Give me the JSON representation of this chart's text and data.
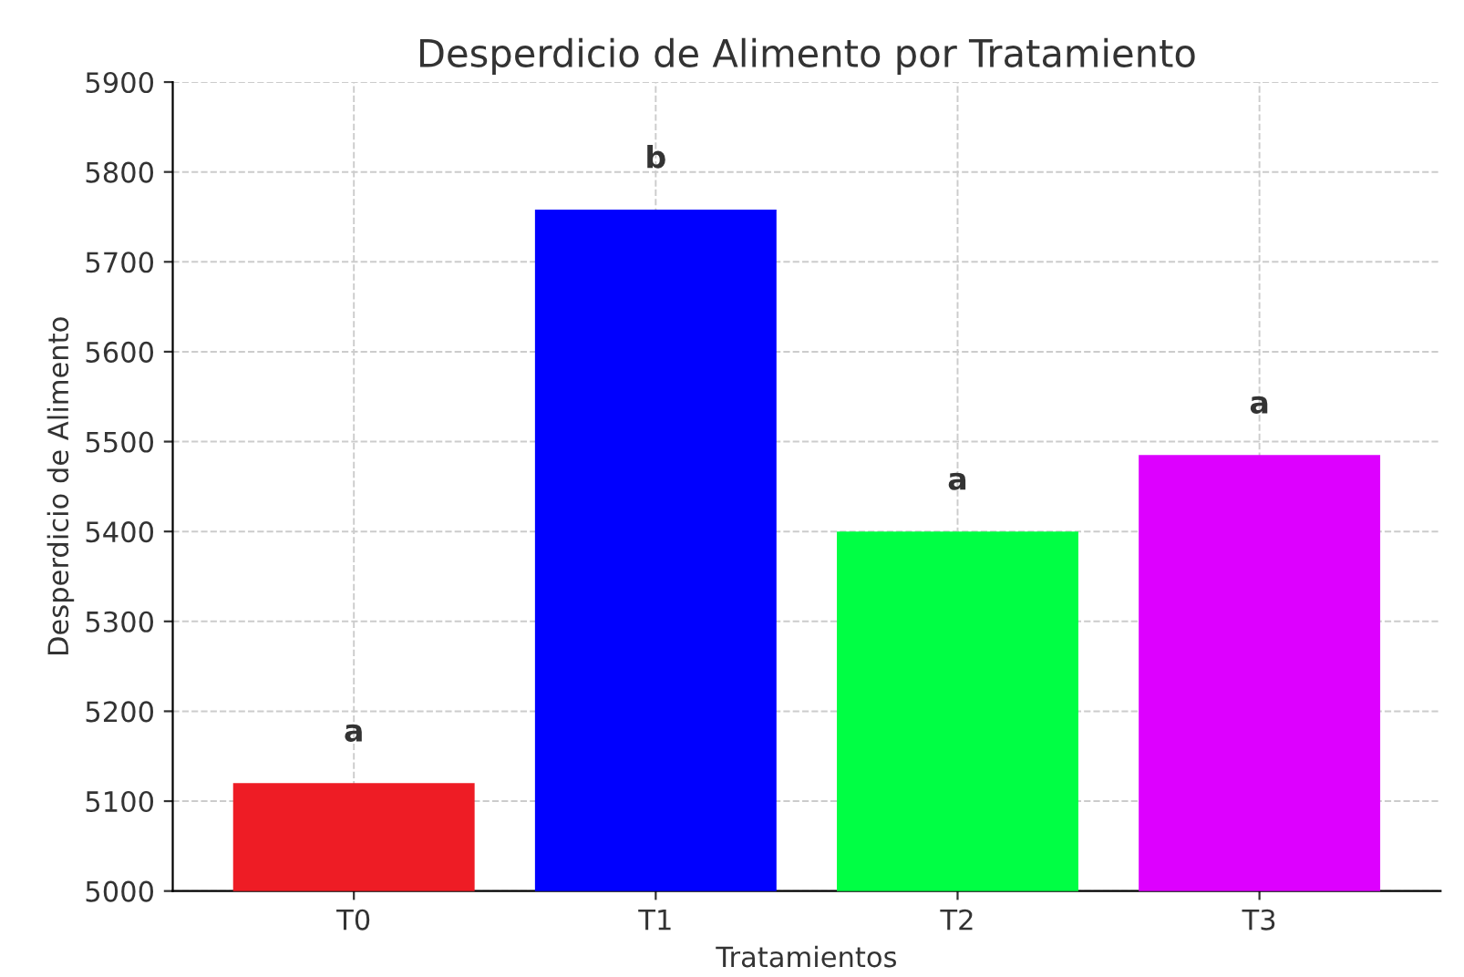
{
  "chart_data": {
    "type": "bar",
    "title": "Desperdicio de Alimento por Tratamiento",
    "xlabel": "Tratamientos",
    "ylabel": "Desperdicio de Alimento",
    "categories": [
      "T0",
      "T1",
      "T2",
      "T3"
    ],
    "values": [
      5120,
      5758,
      5400,
      5485
    ],
    "colors": [
      "#ee1c25",
      "#0000ff",
      "#00ff44",
      "#dd00ff"
    ],
    "ylim": [
      5000,
      5900
    ],
    "yticks": [
      5000,
      5100,
      5200,
      5300,
      5400,
      5500,
      5600,
      5700,
      5800,
      5900
    ],
    "grid": true,
    "annotations": [
      "a",
      "b",
      "a",
      "a"
    ]
  }
}
